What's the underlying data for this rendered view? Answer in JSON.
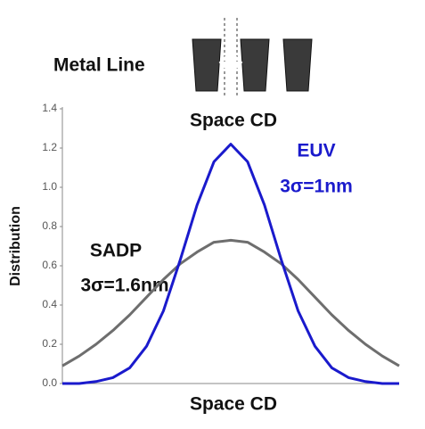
{
  "chart_data": {
    "type": "line",
    "header_label": "Metal Line",
    "header_caption": "Space CD",
    "x_label": "Space CD",
    "y_label": "Distribution",
    "x": [
      -2.0,
      -1.8,
      -1.6,
      -1.4,
      -1.2,
      -1.0,
      -0.8,
      -0.6,
      -0.4,
      -0.2,
      0,
      0.2,
      0.4,
      0.6,
      0.8,
      1.0,
      1.2,
      1.4,
      1.6,
      1.8,
      2.0
    ],
    "xlim": [
      -2.0,
      2.0
    ],
    "ylim": [
      0,
      1.4
    ],
    "yticks": [
      {
        "value": 0,
        "label": "0.0"
      },
      {
        "value": 0.2,
        "label": "0.2"
      },
      {
        "value": 0.4,
        "label": "0.4"
      },
      {
        "value": 0.6,
        "label": "0.6"
      },
      {
        "value": 0.8,
        "label": "0.8"
      },
      {
        "value": 1.0,
        "label": "1.0"
      },
      {
        "value": 1.2,
        "label": "1.2"
      },
      {
        "value": 1.4,
        "label": "1.4"
      }
    ],
    "series": [
      {
        "name": "SADP",
        "annotation": "3σ=1.6nm",
        "color": "#6e6e6e",
        "values": [
          0.09,
          0.14,
          0.2,
          0.27,
          0.35,
          0.44,
          0.53,
          0.61,
          0.67,
          0.72,
          0.73,
          0.72,
          0.67,
          0.61,
          0.53,
          0.44,
          0.35,
          0.27,
          0.2,
          0.14,
          0.09
        ]
      },
      {
        "name": "EUV",
        "annotation": "3σ=1nm",
        "color": "#1a1acc",
        "values": [
          0.0,
          0.0,
          0.01,
          0.03,
          0.08,
          0.19,
          0.37,
          0.63,
          0.91,
          1.13,
          1.22,
          1.13,
          0.91,
          0.63,
          0.37,
          0.19,
          0.08,
          0.03,
          0.01,
          0.0,
          0.0
        ]
      }
    ]
  }
}
